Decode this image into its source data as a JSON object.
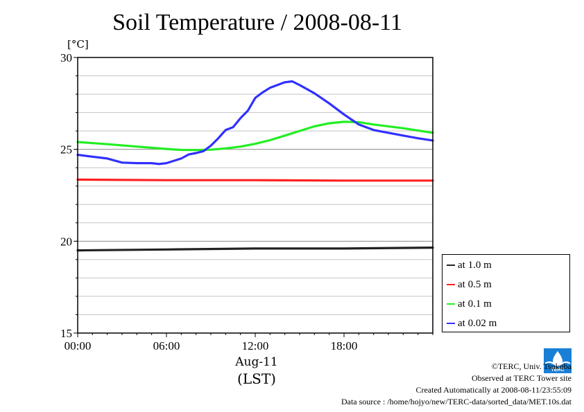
{
  "chart_data": {
    "type": "line",
    "title": "Soil Temperature / 2008-08-11",
    "ylabel": "[°C]",
    "xlabel_date": "Aug-11",
    "xlabel_tz": "(LST)",
    "ylim": [
      15,
      30
    ],
    "y_ticks": [
      "15",
      "20",
      "25",
      "30"
    ],
    "xlim": [
      0,
      24
    ],
    "x_ticks": [
      {
        "hour": 0,
        "label": "00:00"
      },
      {
        "hour": 6,
        "label": "06:00"
      },
      {
        "hour": 12,
        "label": "12:00"
      },
      {
        "hour": 18,
        "label": "18:00"
      }
    ],
    "grid": true,
    "legend_position": "bottom-right, outside",
    "series": [
      {
        "name": "at 1.0 m",
        "color": "#222222",
        "x": [
          0,
          6,
          12,
          18,
          24
        ],
        "y": [
          19.5,
          19.55,
          19.6,
          19.6,
          19.65
        ]
      },
      {
        "name": "at 0.5 m",
        "color": "#ff2020",
        "x": [
          0,
          6,
          12,
          18,
          24
        ],
        "y": [
          23.35,
          23.32,
          23.32,
          23.3,
          23.3
        ]
      },
      {
        "name": "at 0.1 m",
        "color": "#22ee22",
        "x": [
          0,
          2,
          4,
          6,
          7,
          8,
          9,
          10,
          11,
          12,
          13,
          14,
          15,
          16,
          17,
          18,
          19,
          20,
          22,
          24
        ],
        "y": [
          25.4,
          25.28,
          25.15,
          25.02,
          24.97,
          24.96,
          24.98,
          25.05,
          25.15,
          25.3,
          25.5,
          25.75,
          26.0,
          26.25,
          26.42,
          26.5,
          26.48,
          26.35,
          26.15,
          25.9
        ]
      },
      {
        "name": "at 0.02 m",
        "color": "#3030ff",
        "x": [
          0,
          1,
          2,
          3,
          4,
          5,
          5.5,
          6,
          7,
          7.5,
          8,
          8.5,
          9,
          9.5,
          10,
          10.5,
          11,
          11.5,
          12,
          12.5,
          13,
          13.5,
          14,
          14.5,
          15,
          16,
          17,
          18,
          19,
          20,
          21,
          22,
          23,
          24
        ],
        "y": [
          24.7,
          24.6,
          24.5,
          24.28,
          24.25,
          24.25,
          24.2,
          24.25,
          24.5,
          24.72,
          24.8,
          24.9,
          25.2,
          25.6,
          26.05,
          26.2,
          26.7,
          27.1,
          27.8,
          28.1,
          28.35,
          28.5,
          28.65,
          28.7,
          28.5,
          28.05,
          27.5,
          26.9,
          26.35,
          26.05,
          25.9,
          25.75,
          25.6,
          25.48
        ]
      }
    ]
  },
  "footer": {
    "copyright": "©TERC, Univ. Tsukuba",
    "site": "Observed at TERC Tower site",
    "created": "Created Automatically at 2008-08-11/23:55:09",
    "source": "Data source : /home/hojyo/new/TERC-data/sorted_data/MET.10s.dat"
  },
  "logo": {
    "text": "TERC",
    "color": "#1a7fd6"
  }
}
